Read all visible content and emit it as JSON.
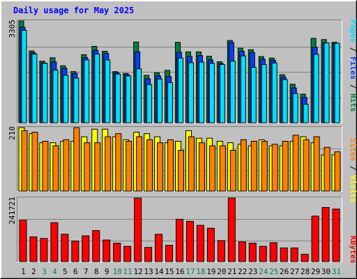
{
  "chart_data": [
    {
      "type": "bar",
      "title": "Daily usage for May 2025",
      "ymax_label": "3305",
      "ylim": [
        0,
        3305
      ],
      "labels": {
        "pages": "Pages",
        "files": "Files",
        "hits": "Hits",
        "sep": " / "
      },
      "categories": [
        "1",
        "2",
        "3",
        "4",
        "5",
        "6",
        "7",
        "8",
        "9",
        "10",
        "11",
        "12",
        "13",
        "14",
        "15",
        "16",
        "17",
        "18",
        "19",
        "20",
        "21",
        "22",
        "23",
        "24",
        "25",
        "26",
        "27",
        "28",
        "29",
        "30",
        "31"
      ],
      "weekend_days": [
        "3",
        "4",
        "10",
        "11",
        "17",
        "18",
        "24",
        "25",
        "31"
      ],
      "series": [
        {
          "name": "Hits",
          "values": [
            3305,
            2330,
            2000,
            2110,
            1850,
            1660,
            2210,
            2480,
            2320,
            1660,
            1600,
            2620,
            1540,
            1620,
            1700,
            2610,
            2300,
            2300,
            2160,
            1980,
            2670,
            2420,
            2370,
            2150,
            2100,
            1560,
            1250,
            930,
            2740,
            2700,
            2610
          ]
        },
        {
          "name": "Files",
          "values": [
            3100,
            2270,
            1940,
            1970,
            1770,
            1600,
            2110,
            2350,
            2250,
            1620,
            1560,
            2300,
            1430,
            1520,
            1500,
            2290,
            2150,
            2180,
            2040,
            1920,
            2600,
            2320,
            2280,
            2060,
            2030,
            1480,
            1130,
            820,
            2450,
            2590,
            2580
          ]
        },
        {
          "name": "Pages",
          "values": [
            3000,
            2230,
            1930,
            1710,
            1540,
            1450,
            2040,
            2230,
            2040,
            1580,
            1520,
            1750,
            1240,
            1420,
            1300,
            2100,
            1950,
            1970,
            1930,
            1890,
            2000,
            2170,
            1800,
            1890,
            1940,
            1400,
            950,
            600,
            2220,
            2590,
            2580
          ]
        }
      ]
    },
    {
      "type": "bar",
      "ymax_label": "210",
      "ylim": [
        0,
        210
      ],
      "labels": {
        "sites": "Sites",
        "visits": "Visits",
        "sep": " / "
      },
      "categories": [
        "1",
        "2",
        "3",
        "4",
        "5",
        "6",
        "7",
        "8",
        "9",
        "10",
        "11",
        "12",
        "13",
        "14",
        "15",
        "16",
        "17",
        "18",
        "19",
        "20",
        "21",
        "22",
        "23",
        "24",
        "25",
        "26",
        "27",
        "28",
        "29",
        "30",
        "31"
      ],
      "series": [
        {
          "name": "Visits",
          "values": [
            210,
            190,
            160,
            160,
            165,
            165,
            180,
            205,
            205,
            180,
            170,
            195,
            190,
            180,
            160,
            165,
            200,
            175,
            175,
            165,
            160,
            155,
            150,
            170,
            150,
            150,
            165,
            180,
            160,
            120,
            120
          ]
        },
        {
          "name": "Sites",
          "values": [
            200,
            195,
            165,
            150,
            170,
            210,
            160,
            160,
            180,
            190,
            165,
            180,
            170,
            160,
            170,
            135,
            180,
            160,
            150,
            150,
            135,
            170,
            165,
            165,
            155,
            165,
            185,
            170,
            180,
            145,
            130
          ]
        }
      ]
    },
    {
      "type": "bar",
      "ymax_label": "241721",
      "ylim": [
        0,
        241721
      ],
      "labels": {
        "kbytes": "KBytes"
      },
      "categories": [
        "1",
        "2",
        "3",
        "4",
        "5",
        "6",
        "7",
        "8",
        "9",
        "10",
        "11",
        "12",
        "13",
        "14",
        "15",
        "16",
        "17",
        "18",
        "19",
        "20",
        "21",
        "22",
        "23",
        "24",
        "25",
        "26",
        "27",
        "28",
        "29",
        "30",
        "31"
      ],
      "series": [
        {
          "name": "KBytes",
          "values": [
            157000,
            94000,
            88000,
            148000,
            104000,
            78000,
            98000,
            118000,
            82000,
            70000,
            58000,
            241721,
            54000,
            104000,
            62000,
            161000,
            153000,
            138000,
            127000,
            80000,
            241721,
            75000,
            70000,
            58000,
            72000,
            52000,
            52000,
            28000,
            173000,
            206000,
            200000
          ]
        }
      ]
    }
  ],
  "colors": {
    "bg": "#C0C0C0",
    "plot": "#C0C0C0",
    "grid": "#808080",
    "title": "#0000FF",
    "hits": "#008040",
    "files": "#0040FF",
    "pages": "#00E0FF",
    "visits": "#FFFF00",
    "sites": "#FF8000",
    "kbytes": "#FF0000",
    "weekday_label": "#000000",
    "weekend_label": "#00805C"
  }
}
